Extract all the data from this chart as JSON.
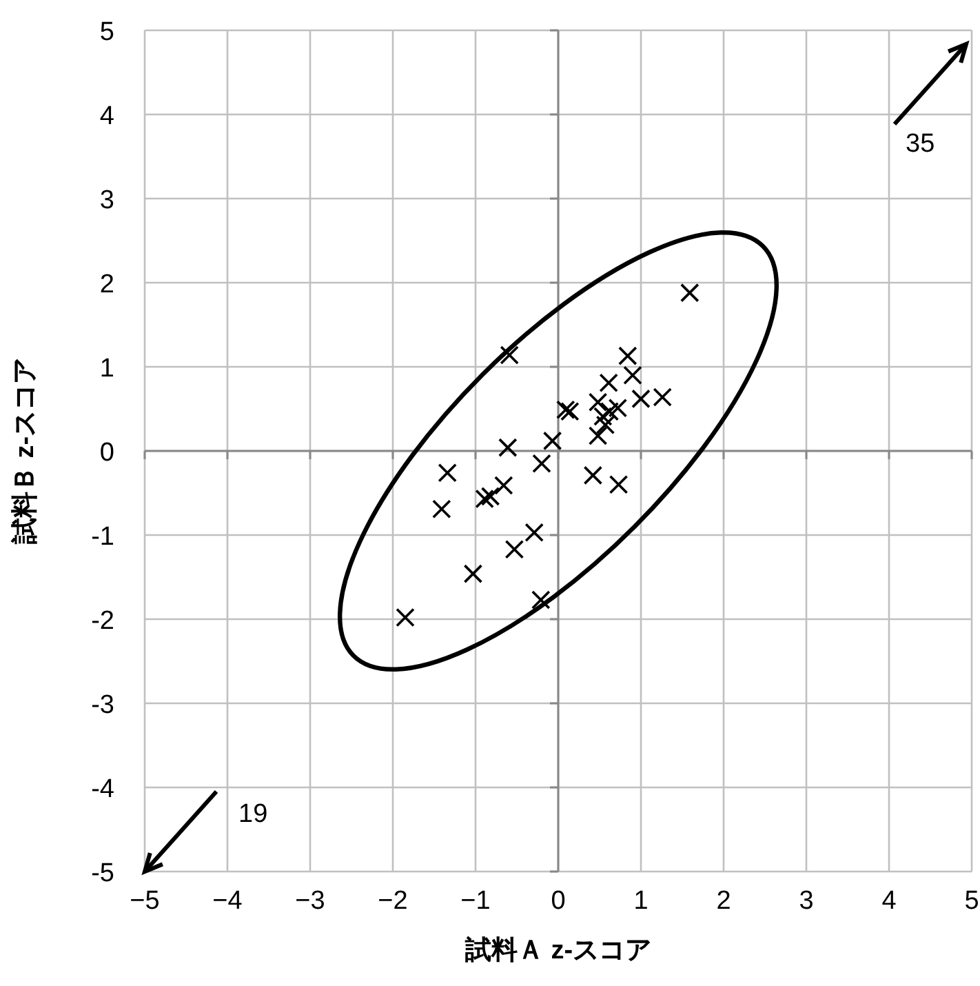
{
  "chart_data": {
    "type": "scatter",
    "xlabel": "試料Ａ z-スコア",
    "ylabel": "試料Ｂ z-スコア",
    "xlim": [
      -5,
      5
    ],
    "ylim": [
      -5,
      5
    ],
    "xticks": [
      {
        "value": -5,
        "label": "−5"
      },
      {
        "value": -4,
        "label": "−4"
      },
      {
        "value": -3,
        "label": "−3"
      },
      {
        "value": -2,
        "label": "−2"
      },
      {
        "value": -1,
        "label": "−1"
      },
      0,
      1,
      2,
      3,
      4,
      5
    ],
    "yticks": [
      -5,
      -4,
      -3,
      -2,
      -1,
      0,
      1,
      2,
      3,
      4,
      5
    ],
    "grid": true,
    "marker": "cross",
    "series": [
      {
        "color": "#000000",
        "x": [
          1.59,
          -0.59,
          0.84,
          0.9,
          0.61,
          1.26,
          1.0,
          0.09,
          0.14,
          0.48,
          0.72,
          0.62,
          0.54,
          0.57,
          0.48,
          -0.07,
          -0.61,
          -0.2,
          0.42,
          0.73,
          -1.34,
          -0.66,
          -0.82,
          -0.89,
          -1.41,
          -0.29,
          -0.53,
          -1.03,
          -0.21,
          -1.85
        ],
        "values": [
          1.88,
          1.14,
          1.13,
          0.9,
          0.81,
          0.64,
          0.62,
          0.49,
          0.47,
          0.58,
          0.51,
          0.47,
          0.41,
          0.31,
          0.18,
          0.12,
          0.04,
          -0.15,
          -0.29,
          -0.4,
          -0.26,
          -0.41,
          -0.54,
          -0.57,
          -0.69,
          -0.97,
          -1.17,
          -1.46,
          -1.77,
          -1.98
        ]
      }
    ],
    "annotations": [
      "35",
      "19"
    ]
  }
}
